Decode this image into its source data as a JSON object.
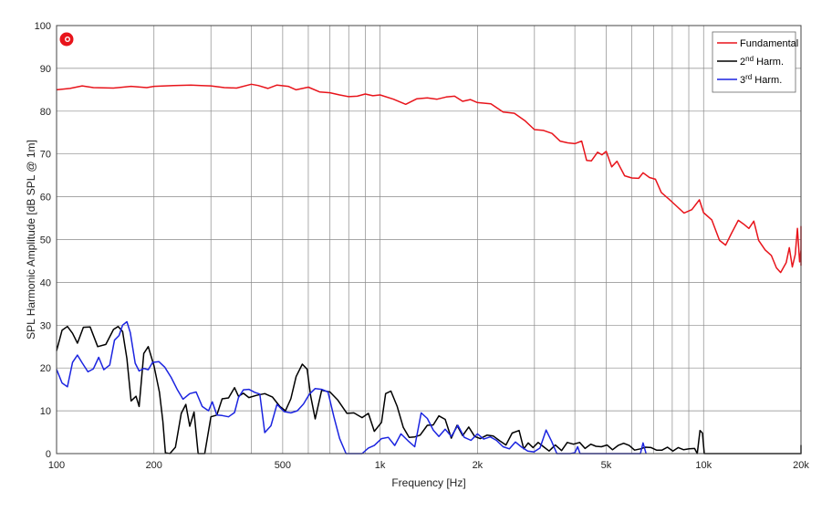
{
  "chart_data": {
    "type": "line",
    "xlabel": "Frequency [Hz]",
    "ylabel": "SPL Harmonic Amplitude [dB SPL @ 1m]",
    "x_scale": "log",
    "xlim": [
      100,
      20000
    ],
    "ylim": [
      0,
      100
    ],
    "grid": true,
    "legend_position": "top-right",
    "x_ticks": [
      {
        "value": 100,
        "label": "100"
      },
      {
        "value": 200,
        "label": "200"
      },
      {
        "value": 500,
        "label": "500"
      },
      {
        "value": 1000,
        "label": "1k"
      },
      {
        "value": 2000,
        "label": "2k"
      },
      {
        "value": 5000,
        "label": "5k"
      },
      {
        "value": 10000,
        "label": "10k"
      },
      {
        "value": 20000,
        "label": "20k"
      }
    ],
    "x_minor_grid": [
      300,
      400,
      600,
      700,
      800,
      900,
      3000,
      4000,
      6000,
      7000,
      8000,
      9000
    ],
    "y_ticks": [
      0,
      10,
      20,
      30,
      40,
      50,
      60,
      70,
      80,
      90,
      100
    ],
    "series": [
      {
        "name": "Fundamental",
        "color": "#e8141b",
        "points": [
          [
            100,
            85.0
          ],
          [
            110,
            85.3
          ],
          [
            120,
            85.9
          ],
          [
            130,
            85.5
          ],
          [
            150,
            85.4
          ],
          [
            170,
            85.8
          ],
          [
            190,
            85.5
          ],
          [
            200,
            85.8
          ],
          [
            230,
            86.0
          ],
          [
            260,
            86.1
          ],
          [
            280,
            86.0
          ],
          [
            300,
            85.9
          ],
          [
            330,
            85.5
          ],
          [
            360,
            85.4
          ],
          [
            400,
            86.3
          ],
          [
            420,
            86.0
          ],
          [
            450,
            85.3
          ],
          [
            480,
            86.1
          ],
          [
            520,
            85.8
          ],
          [
            550,
            85.0
          ],
          [
            600,
            85.6
          ],
          [
            650,
            84.5
          ],
          [
            700,
            84.3
          ],
          [
            750,
            83.8
          ],
          [
            800,
            83.4
          ],
          [
            850,
            83.5
          ],
          [
            900,
            84.0
          ],
          [
            950,
            83.6
          ],
          [
            1000,
            83.8
          ],
          [
            1100,
            82.8
          ],
          [
            1200,
            81.6
          ],
          [
            1300,
            82.9
          ],
          [
            1400,
            83.1
          ],
          [
            1500,
            82.8
          ],
          [
            1600,
            83.3
          ],
          [
            1700,
            83.5
          ],
          [
            1800,
            82.3
          ],
          [
            1900,
            82.7
          ],
          [
            2000,
            82.0
          ],
          [
            2200,
            81.7
          ],
          [
            2400,
            79.8
          ],
          [
            2600,
            79.5
          ],
          [
            2800,
            77.8
          ],
          [
            3000,
            75.7
          ],
          [
            3200,
            75.5
          ],
          [
            3400,
            74.8
          ],
          [
            3600,
            73.0
          ],
          [
            3800,
            72.6
          ],
          [
            4000,
            72.4
          ],
          [
            4200,
            73.0
          ],
          [
            4350,
            68.5
          ],
          [
            4500,
            68.4
          ],
          [
            4700,
            70.4
          ],
          [
            4850,
            69.8
          ],
          [
            5000,
            70.6
          ],
          [
            5200,
            67.0
          ],
          [
            5400,
            68.3
          ],
          [
            5700,
            64.9
          ],
          [
            6000,
            64.4
          ],
          [
            6300,
            64.3
          ],
          [
            6500,
            65.6
          ],
          [
            6800,
            64.5
          ],
          [
            7100,
            64.1
          ],
          [
            7400,
            61.0
          ],
          [
            7800,
            59.5
          ],
          [
            8200,
            58.0
          ],
          [
            8700,
            56.2
          ],
          [
            9200,
            57.0
          ],
          [
            9700,
            59.3
          ],
          [
            10000,
            56.3
          ],
          [
            10600,
            54.6
          ],
          [
            11200,
            49.8
          ],
          [
            11700,
            48.7
          ],
          [
            12200,
            51.5
          ],
          [
            12800,
            54.5
          ],
          [
            13300,
            53.6
          ],
          [
            13800,
            52.6
          ],
          [
            14300,
            54.3
          ],
          [
            14800,
            49.8
          ],
          [
            15500,
            47.6
          ],
          [
            16200,
            46.3
          ],
          [
            16800,
            43.4
          ],
          [
            17300,
            42.3
          ],
          [
            18000,
            44.6
          ],
          [
            18400,
            48.1
          ],
          [
            18800,
            43.6
          ],
          [
            19200,
            46.5
          ],
          [
            19500,
            52.6
          ],
          [
            19800,
            44.8
          ],
          [
            20200,
            47.6
          ],
          [
            20600,
            51.6
          ],
          [
            21000,
            53.1
          ],
          [
            21500,
            43.9
          ]
        ]
      },
      {
        "name": "2nd Harm.",
        "color": "#000000",
        "points": [
          [
            100,
            24.0
          ],
          [
            104,
            28.8
          ],
          [
            108,
            29.7
          ],
          [
            112,
            28.1
          ],
          [
            116,
            25.8
          ],
          [
            121,
            29.5
          ],
          [
            127,
            29.6
          ],
          [
            134,
            25.0
          ],
          [
            142,
            25.5
          ],
          [
            150,
            29.0
          ],
          [
            155,
            29.7
          ],
          [
            160,
            28.5
          ],
          [
            165,
            22.2
          ],
          [
            170,
            12.3
          ],
          [
            176,
            13.4
          ],
          [
            180,
            11.0
          ],
          [
            186,
            23.4
          ],
          [
            192,
            25.0
          ],
          [
            200,
            20.5
          ],
          [
            208,
            14.3
          ],
          [
            213,
            7.6
          ],
          [
            217,
            0.2
          ],
          [
            224,
            0.0
          ],
          [
            233,
            1.5
          ],
          [
            243,
            9.4
          ],
          [
            251,
            11.5
          ],
          [
            258,
            6.4
          ],
          [
            266,
            9.7
          ],
          [
            274,
            0.0
          ],
          [
            287,
            0.0
          ],
          [
            300,
            8.6
          ],
          [
            313,
            9.0
          ],
          [
            325,
            12.8
          ],
          [
            340,
            13.0
          ],
          [
            355,
            15.4
          ],
          [
            365,
            13.4
          ],
          [
            378,
            14.1
          ],
          [
            393,
            13.1
          ],
          [
            415,
            13.6
          ],
          [
            440,
            14.0
          ],
          [
            465,
            13.2
          ],
          [
            490,
            11.0
          ],
          [
            510,
            10.0
          ],
          [
            530,
            12.8
          ],
          [
            550,
            18.0
          ],
          [
            575,
            20.9
          ],
          [
            595,
            19.7
          ],
          [
            610,
            13.5
          ],
          [
            630,
            8.1
          ],
          [
            660,
            14.8
          ],
          [
            700,
            14.4
          ],
          [
            740,
            12.5
          ],
          [
            790,
            9.4
          ],
          [
            830,
            9.5
          ],
          [
            880,
            8.4
          ],
          [
            920,
            9.4
          ],
          [
            960,
            5.2
          ],
          [
            1010,
            7.3
          ],
          [
            1040,
            14.0
          ],
          [
            1080,
            14.6
          ],
          [
            1130,
            11.0
          ],
          [
            1180,
            6.1
          ],
          [
            1230,
            3.8
          ],
          [
            1280,
            3.9
          ],
          [
            1330,
            4.3
          ],
          [
            1400,
            6.6
          ],
          [
            1460,
            6.7
          ],
          [
            1520,
            8.8
          ],
          [
            1590,
            8.0
          ],
          [
            1660,
            3.6
          ],
          [
            1730,
            6.6
          ],
          [
            1800,
            4.2
          ],
          [
            1880,
            6.2
          ],
          [
            1960,
            4.0
          ],
          [
            2040,
            3.5
          ],
          [
            2140,
            4.3
          ],
          [
            2240,
            4.1
          ],
          [
            2340,
            3.0
          ],
          [
            2450,
            2.0
          ],
          [
            2560,
            4.8
          ],
          [
            2690,
            5.4
          ],
          [
            2780,
            1.1
          ],
          [
            2870,
            2.5
          ],
          [
            2970,
            1.4
          ],
          [
            3080,
            2.6
          ],
          [
            3200,
            1.6
          ],
          [
            3330,
            0.6
          ],
          [
            3480,
            2.0
          ],
          [
            3640,
            0.7
          ],
          [
            3790,
            2.6
          ],
          [
            3960,
            2.2
          ],
          [
            4140,
            2.6
          ],
          [
            4300,
            1.2
          ],
          [
            4480,
            2.2
          ],
          [
            4650,
            1.7
          ],
          [
            4830,
            1.6
          ],
          [
            5030,
            2.0
          ],
          [
            5230,
            0.9
          ],
          [
            5440,
            1.9
          ],
          [
            5660,
            2.4
          ],
          [
            5890,
            1.9
          ],
          [
            6120,
            0.8
          ],
          [
            6380,
            1.1
          ],
          [
            6620,
            1.5
          ],
          [
            6880,
            1.4
          ],
          [
            7150,
            0.8
          ],
          [
            7440,
            0.8
          ],
          [
            7730,
            1.5
          ],
          [
            8040,
            0.6
          ],
          [
            8350,
            1.4
          ],
          [
            8680,
            0.9
          ],
          [
            9020,
            1.1
          ],
          [
            9380,
            1.2
          ],
          [
            9560,
            0.0
          ],
          [
            9750,
            5.4
          ],
          [
            9920,
            4.8
          ],
          [
            10050,
            0.0
          ],
          [
            20000,
            0.0
          ],
          [
            20300,
            2.0
          ]
        ]
      },
      {
        "name": "3rd Harm.",
        "color": "#1b24e0",
        "points": [
          [
            100,
            19.7
          ],
          [
            104,
            16.5
          ],
          [
            108,
            15.6
          ],
          [
            112,
            21.3
          ],
          [
            116,
            23.0
          ],
          [
            120,
            21.2
          ],
          [
            125,
            19.1
          ],
          [
            130,
            19.8
          ],
          [
            135,
            22.5
          ],
          [
            140,
            19.6
          ],
          [
            146,
            20.7
          ],
          [
            151,
            26.5
          ],
          [
            156,
            27.6
          ],
          [
            160,
            30.0
          ],
          [
            165,
            30.8
          ],
          [
            169,
            28.3
          ],
          [
            175,
            21.1
          ],
          [
            180,
            19.3
          ],
          [
            186,
            19.9
          ],
          [
            192,
            19.6
          ],
          [
            198,
            21.3
          ],
          [
            207,
            21.5
          ],
          [
            216,
            20.2
          ],
          [
            226,
            17.8
          ],
          [
            236,
            15.0
          ],
          [
            246,
            12.7
          ],
          [
            258,
            14.0
          ],
          [
            270,
            14.4
          ],
          [
            282,
            11.0
          ],
          [
            295,
            10.0
          ],
          [
            303,
            12.1
          ],
          [
            313,
            9.0
          ],
          [
            325,
            8.9
          ],
          [
            340,
            8.6
          ],
          [
            355,
            9.6
          ],
          [
            365,
            13.1
          ],
          [
            378,
            14.9
          ],
          [
            393,
            15.0
          ],
          [
            410,
            14.3
          ],
          [
            425,
            13.9
          ],
          [
            440,
            4.9
          ],
          [
            460,
            6.5
          ],
          [
            480,
            11.5
          ],
          [
            505,
            9.8
          ],
          [
            530,
            9.5
          ],
          [
            555,
            10.0
          ],
          [
            580,
            11.6
          ],
          [
            605,
            13.9
          ],
          [
            630,
            15.2
          ],
          [
            660,
            15.0
          ],
          [
            690,
            14.4
          ],
          [
            720,
            8.6
          ],
          [
            750,
            3.5
          ],
          [
            785,
            0.0
          ],
          [
            880,
            0.0
          ],
          [
            920,
            1.3
          ],
          [
            960,
            1.9
          ],
          [
            1010,
            3.5
          ],
          [
            1060,
            3.8
          ],
          [
            1110,
            1.9
          ],
          [
            1160,
            4.6
          ],
          [
            1220,
            3.0
          ],
          [
            1280,
            1.6
          ],
          [
            1340,
            9.5
          ],
          [
            1400,
            8.2
          ],
          [
            1460,
            5.5
          ],
          [
            1520,
            4.0
          ],
          [
            1590,
            5.7
          ],
          [
            1660,
            4.0
          ],
          [
            1740,
            6.6
          ],
          [
            1820,
            3.8
          ],
          [
            1910,
            3.1
          ],
          [
            2000,
            4.6
          ],
          [
            2090,
            3.4
          ],
          [
            2190,
            3.9
          ],
          [
            2290,
            3.1
          ],
          [
            2400,
            1.6
          ],
          [
            2510,
            1.1
          ],
          [
            2620,
            2.7
          ],
          [
            2740,
            1.5
          ],
          [
            2860,
            0.6
          ],
          [
            2990,
            0.4
          ],
          [
            3120,
            1.3
          ],
          [
            3260,
            5.5
          ],
          [
            3390,
            2.9
          ],
          [
            3520,
            0.0
          ],
          [
            3870,
            0.0
          ],
          [
            4000,
            0.2
          ],
          [
            4080,
            1.6
          ],
          [
            4150,
            0.0
          ],
          [
            6380,
            0.0
          ],
          [
            6500,
            2.5
          ],
          [
            6640,
            0.0
          ]
        ]
      }
    ]
  },
  "logo": {
    "name": "brand-logo",
    "color": "#e8141b"
  },
  "legend": {
    "fundamental_label": "Fundamental",
    "harm2_base": "2",
    "harm2_sup": "nd",
    "harm2_rest": " Harm.",
    "harm3_base": "3",
    "harm3_sup": "rd",
    "harm3_rest": " Harm."
  }
}
